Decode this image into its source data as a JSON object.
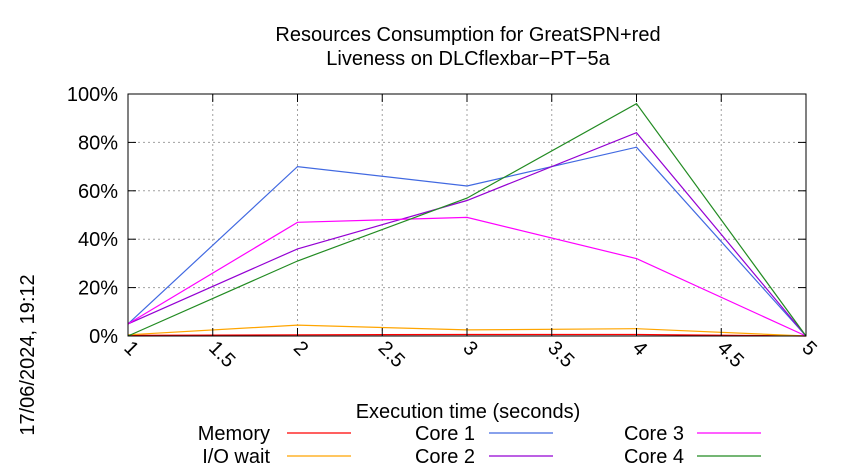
{
  "chart_data": {
    "type": "line",
    "title_line1": "Resources Consumption for GreatSPN+red",
    "title_line2": "Liveness on DLCflexbar−PT−5a",
    "xlabel": "Execution time (seconds)",
    "ylabel": "",
    "side_label": "17/06/2024, 19:12",
    "xlim": [
      1,
      5
    ],
    "ylim": [
      0,
      100
    ],
    "x_ticks": [
      1,
      1.5,
      2,
      2.5,
      3,
      3.5,
      4,
      4.5,
      5
    ],
    "x_tick_labels": [
      "1",
      "1.5",
      "2",
      "2.5",
      "3",
      "3.5",
      "4",
      "4.5",
      "5"
    ],
    "y_ticks": [
      0,
      20,
      40,
      60,
      80,
      100
    ],
    "y_tick_labels": [
      "0%",
      "20%",
      "40%",
      "60%",
      "80%",
      "100%"
    ],
    "grid": true,
    "legend_placement": "bottom",
    "x": [
      1,
      2,
      3,
      4,
      5
    ],
    "series": [
      {
        "name": "Memory",
        "color": "#ff0000",
        "values": [
          0.3,
          0.5,
          0.6,
          0.6,
          0
        ]
      },
      {
        "name": "I/O wait",
        "color": "#ffa500",
        "values": [
          0.5,
          4.5,
          2.5,
          3,
          0
        ]
      },
      {
        "name": "Core 1",
        "color": "#4169e1",
        "values": [
          5,
          70,
          62,
          78,
          0
        ]
      },
      {
        "name": "Core 2",
        "color": "#9400d3",
        "values": [
          5,
          36,
          56,
          84,
          0
        ]
      },
      {
        "name": "Core 3",
        "color": "#ff00ff",
        "values": [
          5,
          47,
          49,
          32,
          0
        ]
      },
      {
        "name": "Core 4",
        "color": "#228b22",
        "values": [
          0,
          31,
          57,
          96,
          0
        ]
      }
    ]
  }
}
